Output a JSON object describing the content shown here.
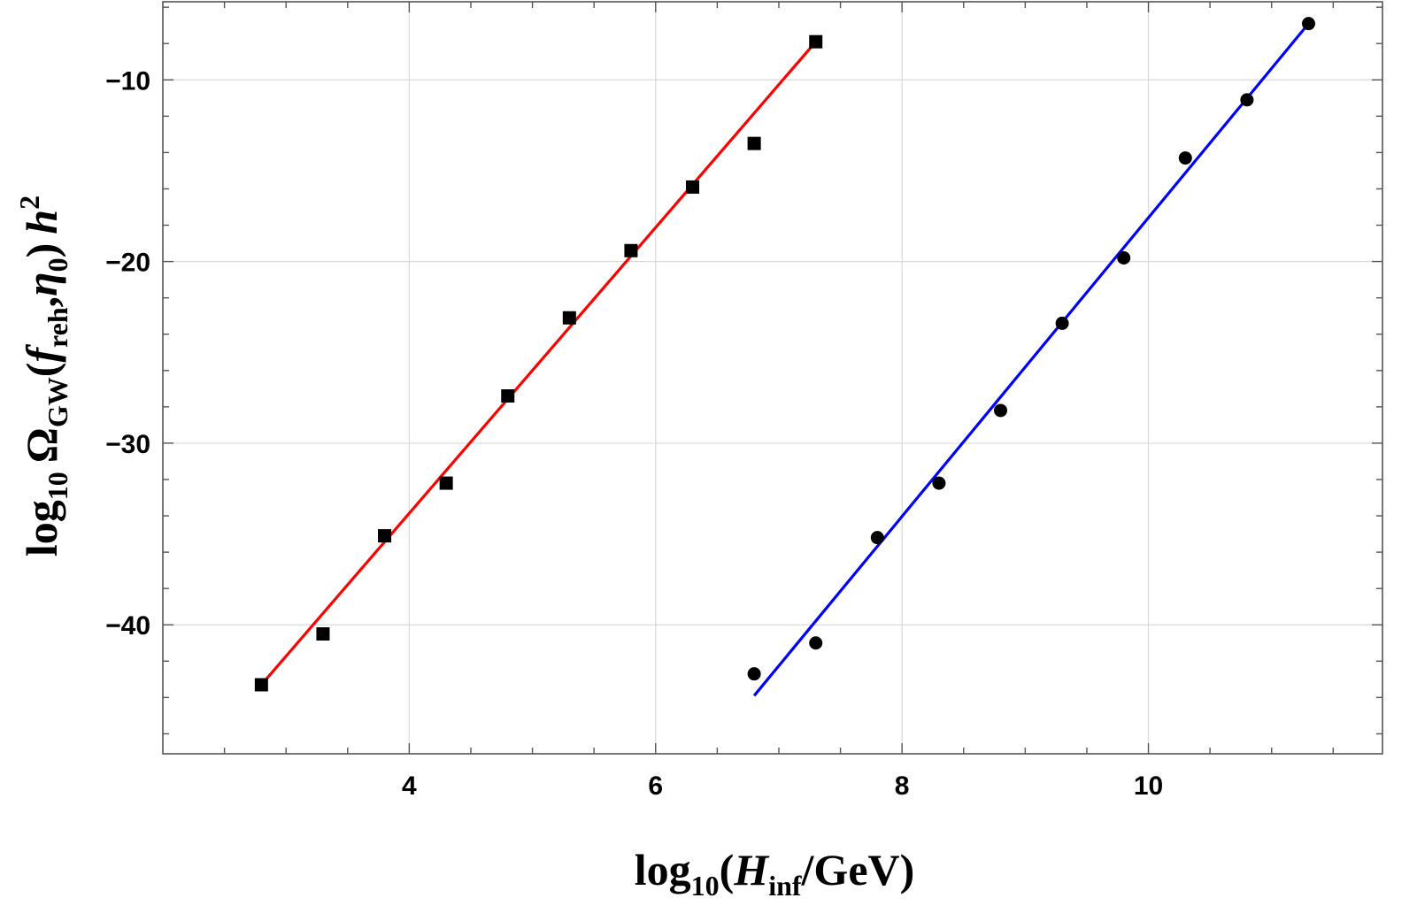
{
  "chart_data": {
    "type": "scatter",
    "xlabel": {
      "base": "log",
      "sub1": "10",
      "open": "(",
      "var": "H",
      "sub2": "inf",
      "rest": "/GeV)"
    },
    "ylabel": {
      "base": "log",
      "sub1": "10",
      "omega": "Ω",
      "sub2": "GW",
      "open": "(",
      "f": "f",
      "sub3": "reh",
      "comma": ",",
      "eta": "η",
      "sub4": "0",
      "close": ")",
      "h": "h",
      "sup": "2"
    },
    "xlim": [
      2.0,
      11.9
    ],
    "ylim": [
      -47.1,
      -5.7
    ],
    "xticks": [
      4,
      6,
      8,
      10
    ],
    "xtick_labels": [
      "4",
      "6",
      "8",
      "10"
    ],
    "yticks": [
      -10,
      -20,
      -30,
      -40
    ],
    "ytick_labels": [
      "−10",
      "−20",
      "−30",
      "−40"
    ],
    "grid": true,
    "series": [
      {
        "marker": "square",
        "color": "#000000",
        "x": [
          2.8,
          3.3,
          3.8,
          4.3,
          4.8,
          5.3,
          5.8,
          6.3,
          6.8,
          7.3
        ],
        "y": [
          -43.3,
          -40.5,
          -35.1,
          -32.2,
          -27.4,
          -23.1,
          -19.4,
          -15.9,
          -13.5,
          -7.9
        ]
      },
      {
        "marker": "circle",
        "color": "#000000",
        "x": [
          6.8,
          7.3,
          7.8,
          8.3,
          8.8,
          9.3,
          9.8,
          10.3,
          10.8,
          11.3
        ],
        "y": [
          -42.7,
          -41.0,
          -35.2,
          -32.2,
          -28.2,
          -23.4,
          -19.8,
          -14.3,
          -11.1,
          -6.9
        ]
      }
    ],
    "fit_lines": [
      {
        "color": "#ff0000",
        "x": [
          2.8,
          7.3
        ],
        "y": [
          -43.3,
          -7.9
        ]
      },
      {
        "color": "#0000ff",
        "x": [
          6.8,
          11.3
        ],
        "y": [
          -43.9,
          -6.9
        ]
      }
    ]
  }
}
